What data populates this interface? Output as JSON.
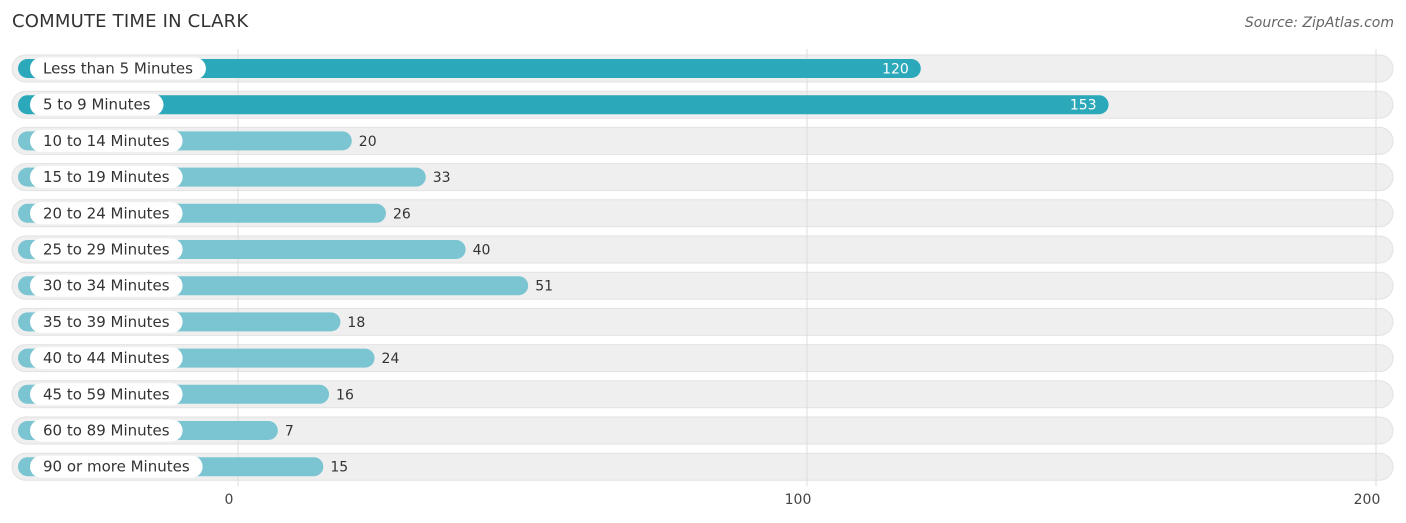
{
  "title": "COMMUTE TIME IN CLARK",
  "source": "Source: ZipAtlas.com",
  "colors": {
    "bar_highlight": "#2ba8ba",
    "bar_normal": "#7ac5d1",
    "row_background": "#efefef",
    "gridline": "#dddddd"
  },
  "chart_data": {
    "type": "bar",
    "orientation": "horizontal",
    "categories": [
      "Less than 5 Minutes",
      "5 to 9 Minutes",
      "10 to 14 Minutes",
      "15 to 19 Minutes",
      "20 to 24 Minutes",
      "25 to 29 Minutes",
      "30 to 34 Minutes",
      "35 to 39 Minutes",
      "40 to 44 Minutes",
      "45 to 59 Minutes",
      "60 to 89 Minutes",
      "90 or more Minutes"
    ],
    "values": [
      120,
      153,
      20,
      33,
      26,
      40,
      51,
      18,
      24,
      16,
      7,
      15
    ],
    "highlighted": [
      true,
      true,
      false,
      false,
      false,
      false,
      false,
      false,
      false,
      false,
      false,
      false
    ],
    "xlim": [
      0,
      200
    ],
    "xticks": [
      0,
      100,
      200
    ],
    "grid": true
  }
}
